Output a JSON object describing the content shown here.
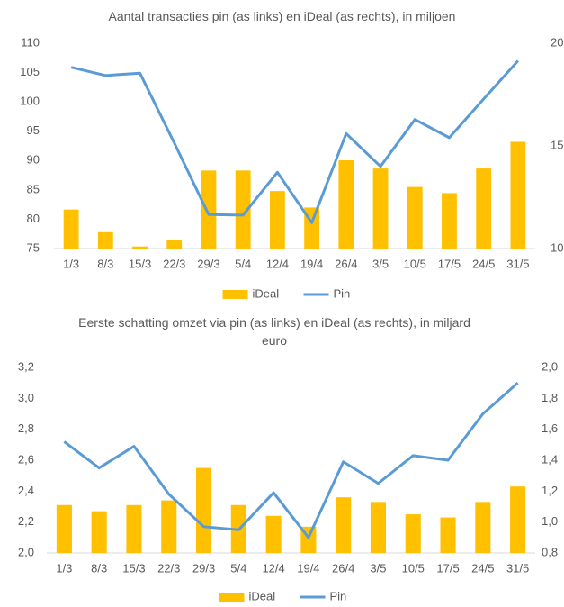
{
  "chart_data": [
    {
      "type": "combo",
      "title": "Aantal transacties pin (as links) en iDeal (as rechts), in miljoen",
      "categories": [
        "1/3",
        "8/3",
        "15/3",
        "22/3",
        "29/3",
        "5/4",
        "12/4",
        "19/4",
        "26/4",
        "3/5",
        "10/5",
        "17/5",
        "24/5",
        "31/5"
      ],
      "series": [
        {
          "name": "iDeal",
          "kind": "bar",
          "axis": "y2",
          "color": "#FFC000",
          "values": [
            11.9,
            10.8,
            10.1,
            10.4,
            13.8,
            13.8,
            12.8,
            12.0,
            14.3,
            13.9,
            13.0,
            12.7,
            13.9,
            15.2
          ]
        },
        {
          "name": "Pin",
          "kind": "line",
          "color": "#5B9BD5",
          "values": [
            105.9,
            104.5,
            104.9,
            93,
            80.8,
            80.7,
            88,
            79.4,
            94.6,
            89,
            97,
            93.9,
            100.5,
            107
          ]
        }
      ],
      "ylim": [
        75,
        110
      ],
      "yticks": [
        75,
        80,
        85,
        90,
        95,
        100,
        105,
        110
      ],
      "y2lim": [
        10,
        20
      ],
      "y2ticks": [
        10,
        15,
        20
      ],
      "grid": false,
      "legend": "bottom"
    },
    {
      "type": "combo",
      "title": "Eerste schatting omzet via pin (as links) en iDeal (as rechts), in miljard euro",
      "categories": [
        "1/3",
        "8/3",
        "15/3",
        "22/3",
        "29/3",
        "5/4",
        "12/4",
        "19/4",
        "26/4",
        "3/5",
        "10/5",
        "17/5",
        "24/5",
        "31/5"
      ],
      "series": [
        {
          "name": "iDeal",
          "kind": "bar",
          "axis": "y2",
          "color": "#FFC000",
          "values": [
            1.11,
            1.07,
            1.11,
            1.14,
            1.35,
            1.11,
            1.04,
            0.97,
            1.16,
            1.13,
            1.05,
            1.03,
            1.13,
            1.23
          ]
        },
        {
          "name": "Pin",
          "kind": "line",
          "color": "#5B9BD5",
          "values": [
            2.72,
            2.55,
            2.69,
            2.38,
            2.17,
            2.15,
            2.39,
            2.1,
            2.59,
            2.45,
            2.63,
            2.6,
            2.9,
            3.1
          ]
        }
      ],
      "ylim": [
        2.0,
        3.2
      ],
      "yticks": [
        {
          "value": 2.0,
          "label": "2,0"
        },
        {
          "value": 2.2,
          "label": "2,2"
        },
        {
          "value": 2.4,
          "label": "2,4"
        },
        {
          "value": 2.6,
          "label": "2,6"
        },
        {
          "value": 2.8,
          "label": "2,8"
        },
        {
          "value": 3.0,
          "label": "3,0"
        },
        {
          "value": 3.2,
          "label": "3,2"
        }
      ],
      "y2lim": [
        0.8,
        2.0
      ],
      "y2ticks": [
        {
          "value": 0.8,
          "label": "0,8"
        },
        {
          "value": 1.0,
          "label": "1,0"
        },
        {
          "value": 1.2,
          "label": "1,2"
        },
        {
          "value": 1.4,
          "label": "1,4"
        },
        {
          "value": 1.6,
          "label": "1,6"
        },
        {
          "value": 1.8,
          "label": "1,8"
        },
        {
          "value": 2.0,
          "label": "2,0"
        }
      ],
      "grid": false,
      "legend": "bottom"
    }
  ]
}
